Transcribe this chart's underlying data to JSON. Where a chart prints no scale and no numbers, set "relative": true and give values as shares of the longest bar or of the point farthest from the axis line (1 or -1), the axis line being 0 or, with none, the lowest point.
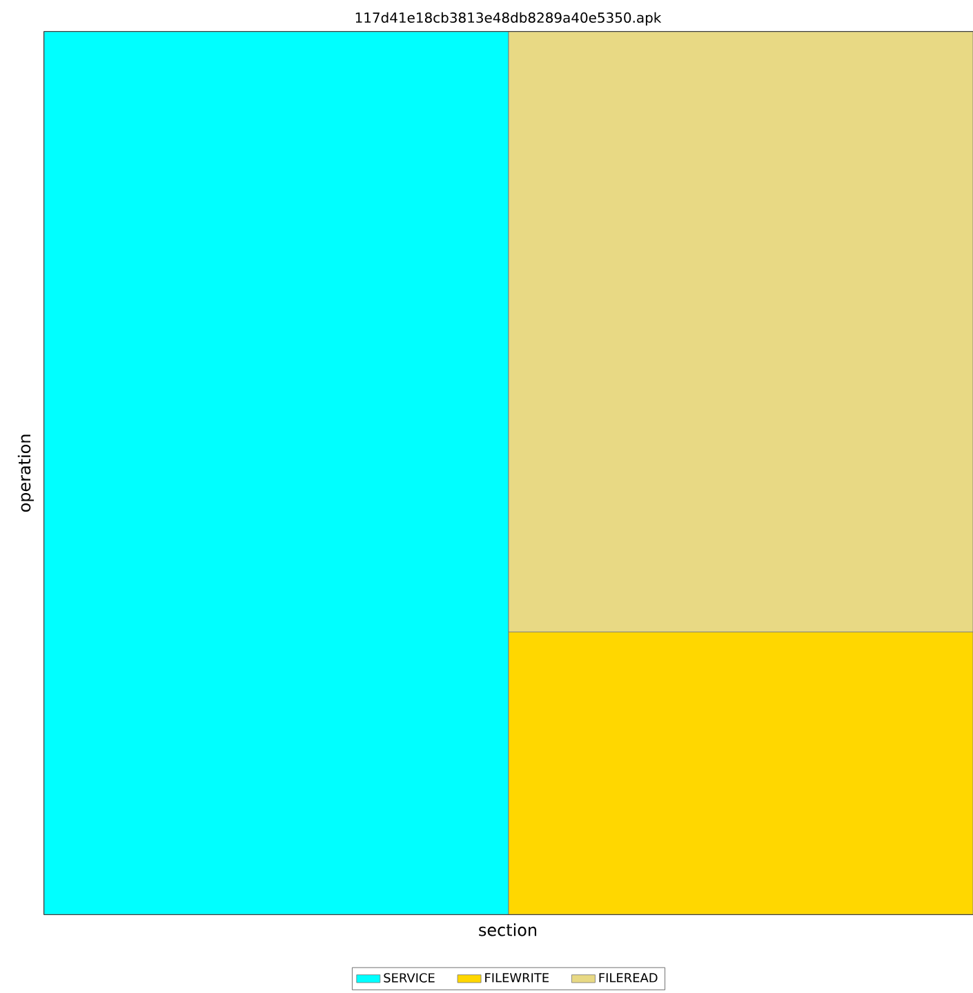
{
  "chart_data": {
    "type": "bar",
    "title": "117d41e18cb3813e48db8289a40e5350.apk",
    "xlabel": "section",
    "ylabel": "operation",
    "categories": [
      null,
      null
    ],
    "stacked": true,
    "relative": true,
    "legend": "bottom",
    "series": [
      {
        "name": "SERVICE",
        "color": "#00ffff",
        "values": [
          1,
          null
        ]
      },
      {
        "name": "FILEWRITE",
        "color": "#ffd700",
        "values": [
          null,
          0.32
        ]
      },
      {
        "name": "FILEREAD",
        "color": "#e8d984",
        "values": [
          null,
          0.68
        ]
      }
    ]
  }
}
